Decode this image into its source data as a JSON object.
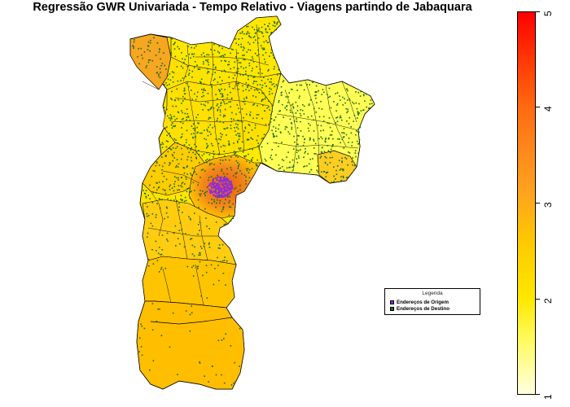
{
  "title": "Regressão GWR Univariada - Tempo Relativo - Viagens partindo de Jabaquara",
  "legend": {
    "title": "Legenda",
    "items": [
      {
        "label": "Endereços de Origem",
        "color": "#8a2be2"
      },
      {
        "label": "Endereços de Destino",
        "color": "#1a6b1a"
      }
    ]
  },
  "colorbar": {
    "min": 1,
    "max": 5,
    "ticks": [
      "1",
      "2",
      "3",
      "4",
      "5"
    ],
    "colors": [
      "#ffffe0",
      "#ffff40",
      "#ffc800",
      "#ff8a1c",
      "#ff0000"
    ]
  },
  "map_colors": {
    "fill_low": "#ffff4d",
    "fill_mid": "#ffd400",
    "fill_high": "#f59a1a",
    "fill_hot": "#ee6d12",
    "border": "#000000",
    "origin_points": "#8a2be2",
    "destination_points": "#1a6b1a"
  }
}
